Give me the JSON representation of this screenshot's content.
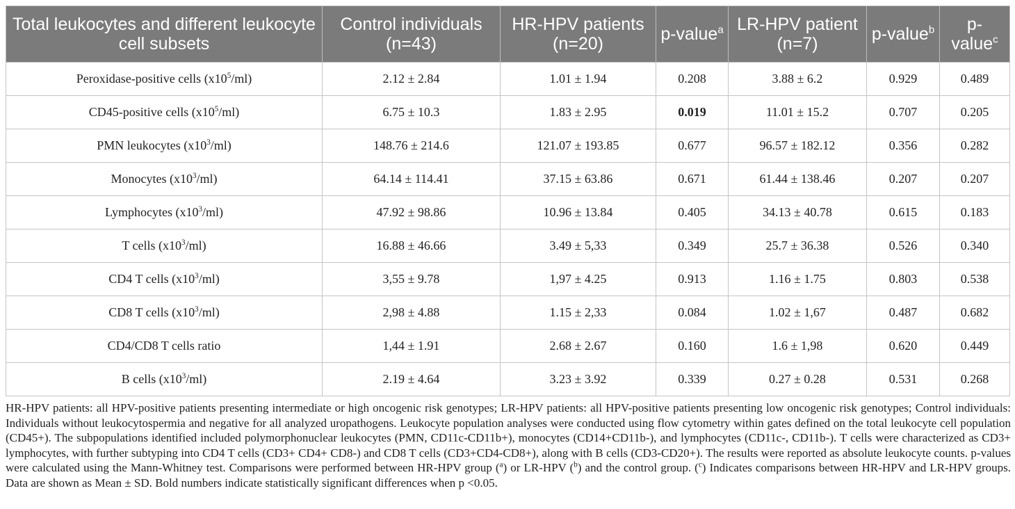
{
  "header": {
    "col0": "Total leukocytes and different leukocyte cell subsets",
    "col1": "Control individuals (n=43)",
    "col2": "HR-HPV patients (n=20)",
    "col3": "p-value",
    "col3_sup": "a",
    "col4": "LR-HPV patient (n=7)",
    "col5": "p-value",
    "col5_sup": "b",
    "col6": "p-value",
    "col6_sup": "c"
  },
  "rows": [
    {
      "label_pre": "Peroxidase-positive cells (x10",
      "label_sup": "5",
      "label_post": "/ml)",
      "control": "2.12 ± 2.84",
      "hr": "1.01 ± 1.94",
      "pa": "0.208",
      "lr": "3.88 ± 6.2",
      "pb": "0.929",
      "pc": "0.489"
    },
    {
      "label_pre": "CD45-positive cells (x10",
      "label_sup": "5",
      "label_post": "/ml)",
      "control": "6.75 ± 10.3",
      "hr": "1.83 ± 2.95",
      "pa": "0.019",
      "lr": "11.01 ± 15.2",
      "pb": "0.707",
      "pc": "0.205"
    },
    {
      "label_pre": "PMN leukocytes (x10",
      "label_sup": "3",
      "label_post": "/ml)",
      "control": "148.76 ± 214.6",
      "hr": "121.07 ± 193.85",
      "pa": "0.677",
      "lr": "96.57 ± 182.12",
      "pb": "0.356",
      "pc": "0.282"
    },
    {
      "label_pre": "Monocytes (x10",
      "label_sup": "3",
      "label_post": "/ml)",
      "control": "64.14 ± 114.41",
      "hr": "37.15 ± 63.86",
      "pa": "0.671",
      "lr": "61.44 ± 138.46",
      "pb": "0.207",
      "pc": "0.207"
    },
    {
      "label_pre": "Lymphocytes (x10",
      "label_sup": "3",
      "label_post": "/ml)",
      "control": "47.92 ± 98.86",
      "hr": "10.96 ± 13.84",
      "pa": "0.405",
      "lr": "34.13 ± 40.78",
      "pb": "0.615",
      "pc": "0.183"
    },
    {
      "label_pre": "T cells (x10",
      "label_sup": "3",
      "label_post": "/ml)",
      "control": "16.88 ± 46.66",
      "hr": "3.49 ± 5,33",
      "pa": "0.349",
      "lr": "25.7 ± 36.38",
      "pb": "0.526",
      "pc": "0.340"
    },
    {
      "label_pre": "CD4 T cells (x10",
      "label_sup": "3",
      "label_post": "/ml)",
      "control": "3,55 ± 9.78",
      "hr": "1,97 ± 4.25",
      "pa": "0.913",
      "lr": "1.16 ± 1.75",
      "pb": "0.803",
      "pc": "0.538"
    },
    {
      "label_pre": "CD8 T cells (x10",
      "label_sup": "3",
      "label_post": "/ml)",
      "control": "2,98 ± 4.88",
      "hr": "1.15 ± 2,33",
      "pa": "0.084",
      "lr": "1.02 ± 1,67",
      "pb": "0.487",
      "pc": "0.682"
    },
    {
      "label_pre": "CD4/CD8 T cells ratio",
      "label_sup": "",
      "label_post": "",
      "control": "1,44 ± 1.91",
      "hr": "2.68 ± 2.67",
      "pa": "0.160",
      "lr": "1.6 ± 1,98",
      "pb": "0.620",
      "pc": "0.449"
    },
    {
      "label_pre": "B cells (x10",
      "label_sup": "3",
      "label_post": "/ml)",
      "control": "2.19 ± 4.64",
      "hr": "3.23 ± 3.92",
      "pa": "0.339",
      "lr": "0.27 ± 0.28",
      "pb": "0.531",
      "pc": "0.268"
    }
  ],
  "footnote": {
    "p1": "HR-HPV patients: all HPV-positive patients presenting intermediate or high oncogenic risk genotypes; LR-HPV patients: all HPV-positive patients presenting low oncogenic risk genotypes; Control individuals: Individuals without leukocytospermia and negative for all analyzed uropathogens. Leukocyte population analyses were conducted using flow cytometry within gates defined on the total leukocyte cell population (CD45+). The subpopulations identified included polymorphonuclear leukocytes (PMN, CD11c-CD11b+), monocytes (CD14+CD11b-), and lymphocytes (CD11c-, CD11b-). T cells were characterized as CD3+ lymphocytes, with further subtyping into CD4 T cells (CD3+ CD4+ CD8-) and CD8 T cells (CD3+CD4-CD8+), along with B cells (CD3-CD20+). The results were reported as absolute leukocyte counts. p-values were calculated using the Mann-Whitney test. Comparisons were performed between HR-HPV group (",
    "sup_a": "a",
    "p2": ") or LR-HPV (",
    "sup_b": "b",
    "p3": ") and the control group. (",
    "sup_c": "c",
    "p4": ") Indicates comparisons between HR-HPV and LR-HPV groups. Data are shown as Mean ± SD. Bold numbers indicate statistically significant differences when p <0.05."
  }
}
